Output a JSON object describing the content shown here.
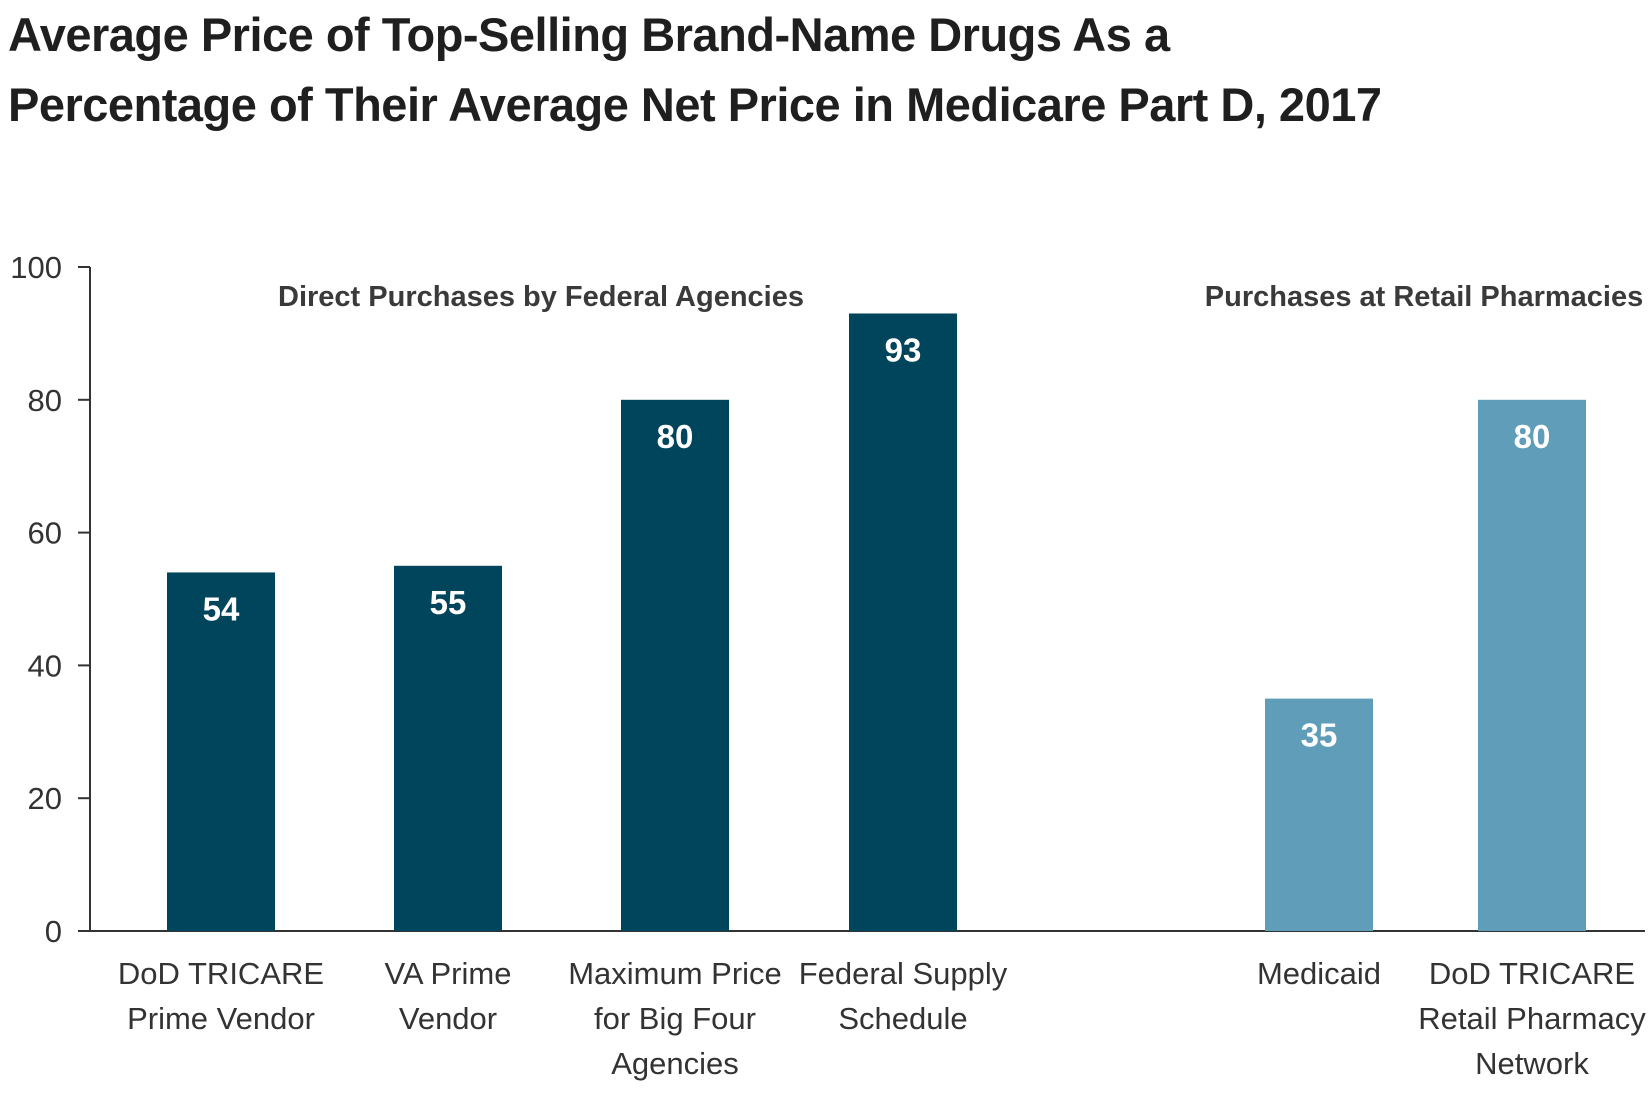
{
  "chart_data": {
    "type": "bar",
    "title": [
      "Average Price of Top-Selling Brand-Name Drugs As a",
      "Percentage of Their Average Net Price in Medicare Part D, 2017"
    ],
    "ylim": [
      0,
      100
    ],
    "yticks": [
      0,
      20,
      40,
      60,
      80,
      100
    ],
    "groups": [
      {
        "label": "Direct Purchases by Federal Agencies",
        "color": "#01455c",
        "bars": [
          {
            "label": [
              "DoD TRICARE",
              "Prime Vendor"
            ],
            "value": 54
          },
          {
            "label": [
              "VA Prime",
              "Vendor"
            ],
            "value": 55
          },
          {
            "label": [
              "Maximum Price",
              "for Big Four",
              "Agencies"
            ],
            "value": 80
          },
          {
            "label": [
              "Federal Supply",
              "Schedule"
            ],
            "value": 93
          }
        ]
      },
      {
        "label": "Purchases at Retail Pharmacies",
        "color": "#5f9db8",
        "bars": [
          {
            "label": [
              "Medicaid"
            ],
            "value": 35
          },
          {
            "label": [
              "DoD TRICARE",
              "Retail Pharmacy",
              "Network"
            ],
            "value": 80
          }
        ]
      }
    ],
    "grid": false,
    "legend": "none"
  }
}
